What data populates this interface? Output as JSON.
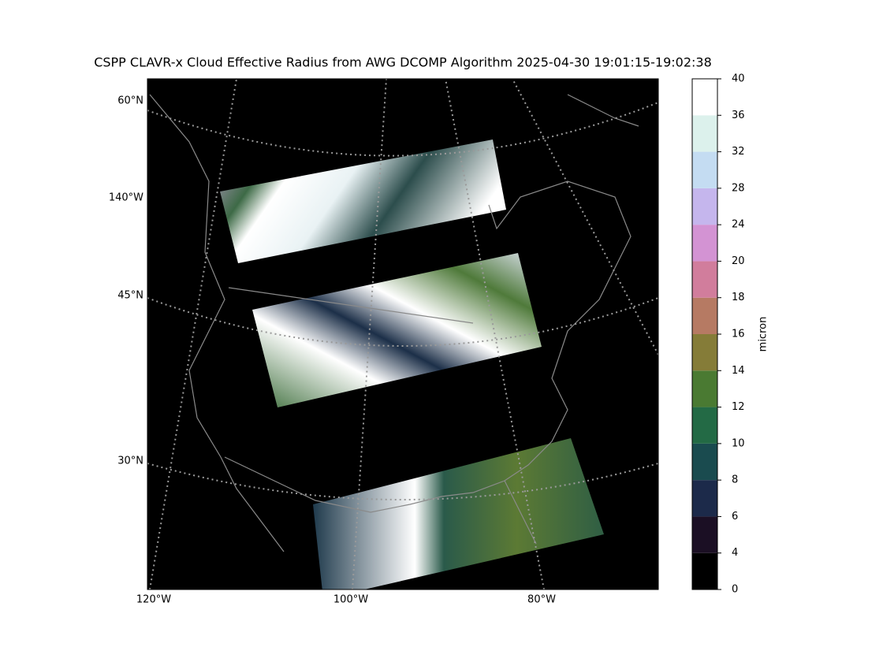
{
  "title": "CSPP CLAVR-x Cloud Effective Radius from AWG DCOMP Algorithm 2025-04-30 19:01:15-19:02:38",
  "map": {
    "lat_labels": [
      "60°N",
      "140°W",
      "45°N",
      "30°N"
    ],
    "lon_labels": [
      "120°W",
      "100°W",
      "80°W"
    ]
  },
  "colorbar": {
    "label": "micron",
    "boundaries": [
      0,
      4,
      6,
      8,
      10,
      12,
      14,
      16,
      18,
      20,
      24,
      28,
      32,
      36,
      40
    ],
    "colors": [
      "#000000",
      "#1b0f24",
      "#1c2a4a",
      "#1a4b4f",
      "#236a45",
      "#4a7a32",
      "#857c38",
      "#b67a63",
      "#d17d9c",
      "#d393d3",
      "#c5b6ed",
      "#c4dcf2",
      "#dcf1ec",
      "#ffffff"
    ]
  }
}
